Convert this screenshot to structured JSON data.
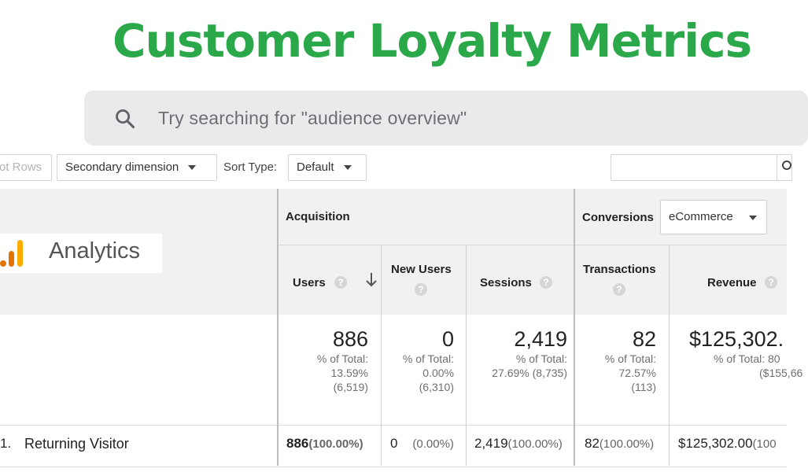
{
  "title": "Customer Loyalty Metrics",
  "search": {
    "placeholder": "Try searching for \"audience overview\"",
    "icon": "search-icon"
  },
  "toolbar": {
    "plot_rows": "ot Rows",
    "secondary_dimension": "Secondary dimension",
    "sort_type_label": "Sort Type:",
    "sort_type_value": "Default"
  },
  "logo": {
    "text": "Analytics",
    "colors": [
      "#f9ab00",
      "#e37400"
    ]
  },
  "groups": {
    "acquisition": "Acquisition",
    "conversions": "Conversions",
    "conversions_select": "eCommerce"
  },
  "columns": {
    "users": "Users",
    "new_users": "New Users",
    "sessions": "Sessions",
    "transactions": "Transactions",
    "revenue": "Revenue"
  },
  "totals": {
    "users": {
      "value": "886",
      "pct_label": "% of Total:",
      "pct": "13.59%",
      "total": "(6,519)"
    },
    "new_users": {
      "value": "0",
      "pct_label": "% of Total:",
      "pct": "0.00%",
      "total": "(6,310)"
    },
    "sessions": {
      "value": "2,419",
      "pct_label": "% of Total:",
      "pct_total": "27.69% (8,735)"
    },
    "transactions": {
      "value": "82",
      "pct_label": "% of Total:",
      "pct": "72.57%",
      "total": "(113)"
    },
    "revenue": {
      "value": "$125,302.",
      "pct_label": "% of Total: 80",
      "total": "($155,66"
    }
  },
  "rows": [
    {
      "index": "1.",
      "name": "Returning Visitor",
      "users": "886",
      "users_pct": "(100.00%)",
      "new_users": "0",
      "new_users_pct": "(0.00%)",
      "sessions": "2,419",
      "sessions_pct": "(100.00%)",
      "transactions": "82",
      "transactions_pct": "(100.00%)",
      "revenue": "$125,302.00",
      "revenue_pct": "(100"
    }
  ],
  "colors": {
    "title_green": "#2aa84a",
    "header_bg": "#f1f1f1",
    "search_bg": "#e9eaec"
  }
}
